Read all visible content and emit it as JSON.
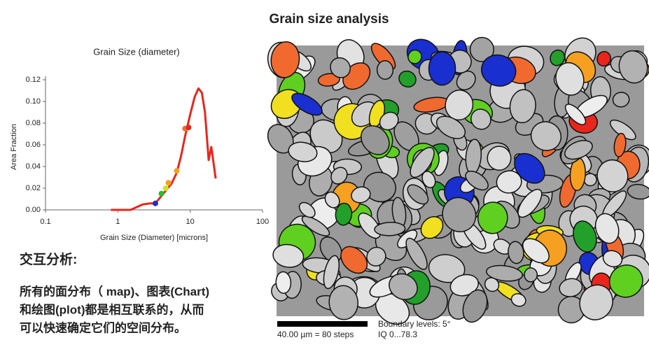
{
  "page": {
    "title": "Grain size analysis"
  },
  "chart_data": {
    "type": "line",
    "title": "Grain Size (diameter)",
    "x_label": "Grain Size (Diameter) [microns]",
    "y_label": "Area Fraction",
    "x": [
      0.8,
      1.5,
      2.2,
      2.8,
      3.3,
      3.8,
      4.5,
      5.5,
      6.5,
      7.5,
      8.5,
      10,
      11.5,
      13,
      14.5,
      16,
      18,
      19.6,
      22.5
    ],
    "series": [
      {
        "color": "#e8261c",
        "values": [
          0,
          0,
          0.005,
          0.006,
          0.006,
          0.011,
          0.017,
          0.024,
          0.034,
          0.05,
          0.068,
          0.088,
          0.104,
          0.112,
          0.108,
          0.09,
          0.046,
          0.058,
          0.029
        ]
      }
    ],
    "highlights": {
      "x": [
        3.3,
        4.0,
        4.6,
        5.0,
        6.5,
        8.5,
        9.5
      ],
      "values": [
        0.006,
        0.015,
        0.02,
        0.025,
        0.036,
        0.075,
        0.076
      ],
      "colors": [
        "#1a2fd0",
        "#22c02a",
        "#c8e81c",
        "#f5a020",
        "#f5a020",
        "#f06a30",
        "#e8261c"
      ]
    },
    "xscale": "log",
    "xlim": [
      0.1,
      100
    ],
    "xticks": [
      0.1,
      1,
      10,
      100
    ],
    "ylim": [
      0,
      0.12
    ],
    "yticks": [
      {
        "value": 0,
        "label": "0.00"
      },
      {
        "value": 0.02,
        "label": "0.02"
      },
      {
        "value": 0.04,
        "label": "0.04"
      },
      {
        "value": 0.06,
        "label": "0.06"
      },
      {
        "value": 0.08,
        "label": "0.08"
      },
      {
        "value": 0.1,
        "label": "0.10"
      },
      {
        "value": 0.12,
        "label": "0.12"
      }
    ]
  },
  "image": {
    "scale_bar": "40.00 µm = 80 steps",
    "boundary": "Boundary levels: 5°",
    "iq": "IQ 0...78.3"
  },
  "notes": {
    "heading": "交互分析:",
    "lines": [
      "所有的面分布（ map)、图表(Chart)",
      "和绘图(plot)都是相互联系的，从而",
      "可以快速确定它们的空间分布。"
    ]
  }
}
